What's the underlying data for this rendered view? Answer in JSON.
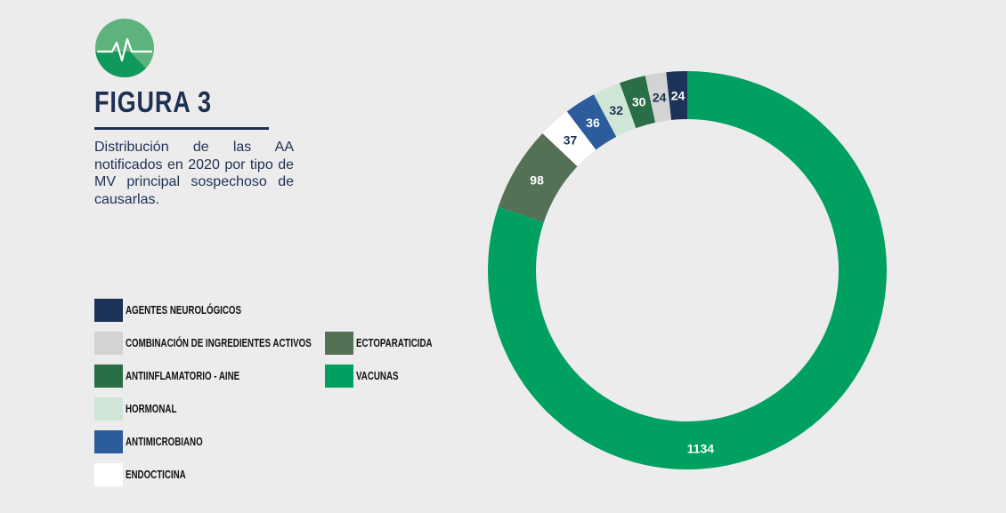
{
  "figure": {
    "title": "FIGURA 3",
    "caption": "Distribución de las AA notificados en 2020 por tipo de MV principal sospechoso de causarlas.",
    "icon": "heartbeat-icon"
  },
  "chart_data": {
    "type": "pie",
    "donut": true,
    "categories": [
      "AGENTES NEUROLÓGICOS",
      "COMBINACIÓN DE INGREDIENTES ACTIVOS",
      "ANTIINFLAMATORIO - AINE",
      "HORMONAL",
      "ANTIMICROBIANO",
      "ENDOCTICINA",
      "ECTOPARATICIDA",
      "VACUNAS"
    ],
    "values": [
      24,
      24,
      30,
      32,
      36,
      37,
      98,
      1134
    ],
    "colors": [
      "#1c3259",
      "#d3d3d3",
      "#2a6e48",
      "#cfe6d6",
      "#2d5c9c",
      "#ffffff",
      "#547155",
      "#00a060"
    ],
    "label_colors": [
      "#ffffff",
      "#1c3259",
      "#ffffff",
      "#1c3259",
      "#ffffff",
      "#1c3259",
      "#ffffff",
      "#ffffff"
    ],
    "legend_position": "left"
  }
}
